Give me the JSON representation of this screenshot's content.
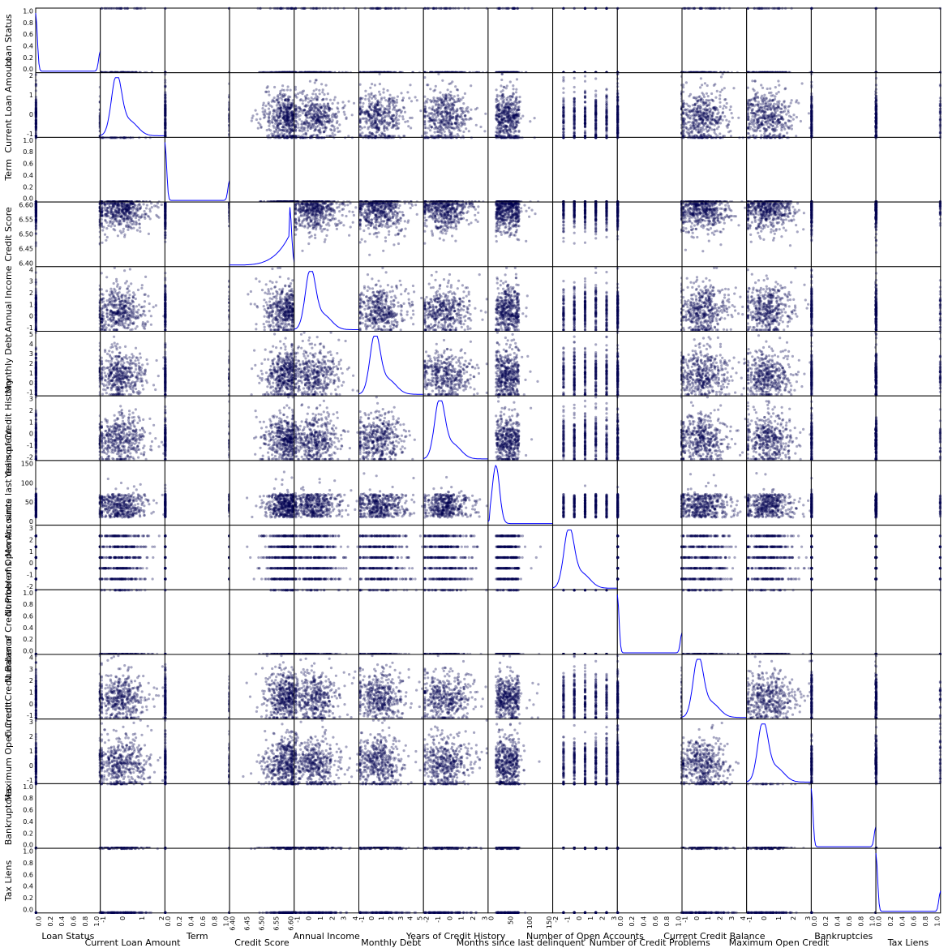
{
  "chart_data": {
    "type": "scatter_matrix",
    "title": "",
    "diagonal": "kde",
    "colors": {
      "points": "#00004f",
      "kde_line": "#0000ff",
      "frame": "#000000",
      "background": "#ffffff"
    },
    "variables": [
      {
        "name": "Loan Status",
        "range": [
          0,
          1
        ],
        "ticks": [
          "0.0",
          "0.2",
          "0.4",
          "0.6",
          "0.8",
          "1.0"
        ],
        "kind": "binary"
      },
      {
        "name": "Current Loan Amount",
        "range": [
          -1.8,
          2.5
        ],
        "ticks": [
          "-1",
          "0",
          "1",
          "2"
        ],
        "kind": "continuous"
      },
      {
        "name": "Term",
        "range": [
          0,
          1
        ],
        "ticks": [
          "0.0",
          "0.2",
          "0.4",
          "0.6",
          "0.8",
          "1.0"
        ],
        "kind": "binary"
      },
      {
        "name": "Credit Score",
        "range": [
          6.37,
          6.63
        ],
        "ticks": [
          "6.40",
          "6.45",
          "6.50",
          "6.55",
          "6.60"
        ],
        "kind": "skewed"
      },
      {
        "name": "Annual Income",
        "range": [
          -1.6,
          4.9
        ],
        "ticks": [
          "-1",
          "0",
          "1",
          "2",
          "3",
          "4"
        ],
        "kind": "continuous"
      },
      {
        "name": "Monthly Debt",
        "range": [
          -1.6,
          5.0
        ],
        "ticks": [
          "-1",
          "0",
          "1",
          "2",
          "3",
          "4",
          "5"
        ],
        "kind": "continuous"
      },
      {
        "name": "Years of Credit History",
        "range": [
          -2.3,
          3.6
        ],
        "ticks": [
          "-2",
          "-1",
          "0",
          "1",
          "2",
          "3"
        ],
        "kind": "continuous"
      },
      {
        "name": "Months since last delinquent",
        "range": [
          -2,
          175
        ],
        "ticks": [
          "0",
          "50",
          "100",
          "150"
        ],
        "kind": "delinquent"
      },
      {
        "name": "Number of Open Accounts",
        "range": [
          -2.3,
          3.3
        ],
        "ticks": [
          "-2",
          "-1",
          "0",
          "1",
          "2",
          "3"
        ],
        "kind": "discrete"
      },
      {
        "name": "Number of Credit Problems",
        "range": [
          0,
          1
        ],
        "ticks": [
          "0.0",
          "0.2",
          "0.4",
          "0.6",
          "0.8",
          "1.0"
        ],
        "kind": "binary"
      },
      {
        "name": "Current Credit Balance",
        "range": [
          -1.3,
          5.0
        ],
        "ticks": [
          "-1",
          "0",
          "1",
          "2",
          "3",
          "4"
        ],
        "kind": "continuous"
      },
      {
        "name": "Maximum Open Credit",
        "range": [
          -1.5,
          3.6
        ],
        "ticks": [
          "-1",
          "0",
          "1",
          "2",
          "3"
        ],
        "kind": "continuous"
      },
      {
        "name": "Bankruptcies",
        "range": [
          0,
          1
        ],
        "ticks": [
          "0.0",
          "0.2",
          "0.4",
          "0.6",
          "0.8",
          "1.0"
        ],
        "kind": "binary"
      },
      {
        "name": "Tax Liens",
        "range": [
          0,
          1
        ],
        "ticks": [
          "0.0",
          "0.2",
          "0.4",
          "0.6",
          "0.8",
          "1.0"
        ],
        "kind": "binary"
      }
    ],
    "diagonal_kde_shapes": {
      "Loan Status": "bimodal: tall peak near 0, small peak near 1",
      "Current Loan Amount": "multimodal ridge peaking near -0.5",
      "Term": "bimodal: small peak at 0, tall peak at 1",
      "Credit Score": "left-skewed, peak near 6.60",
      "Annual Income": "right-skewed, peak near -0.4",
      "Monthly Debt": "right-skewed, peak near -0.3",
      "Years of Credit History": "right-skewed, peak near -0.3",
      "Months since last delinquent": "peak near 20, falls off by 100",
      "Number of Open Accounts": "right-skewed, peak near -0.3",
      "Number of Credit Problems": "tall peak at 0, small bump at 1",
      "Current Credit Balance": "right-skewed, peak near -0.8",
      "Maximum Open Credit": "right-skewed, peak near -0.7",
      "Bankruptcies": "tall peak at 0, small bump at 1",
      "Tax Liens": "tall peak at 0"
    }
  }
}
